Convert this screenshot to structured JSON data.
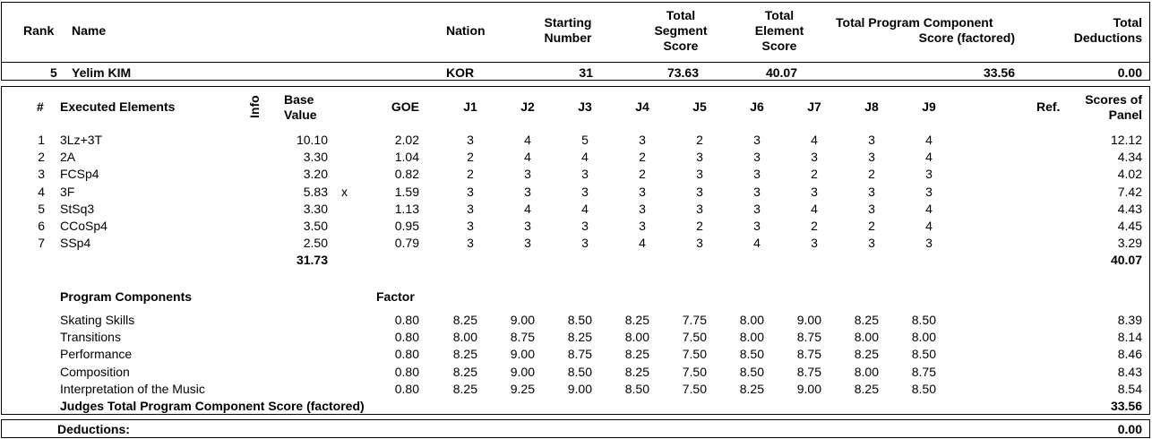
{
  "header": {
    "rank_label": "Rank",
    "name_label": "Name",
    "nation_label": "Nation",
    "starting_label": [
      "Starting",
      "Number"
    ],
    "tss_label": [
      "Total",
      "Segment",
      "Score"
    ],
    "tes_label": [
      "Total",
      "Element",
      "Score"
    ],
    "pcs_label": [
      "Total Program Component",
      "Score (factored)"
    ],
    "ded_label": [
      "Total",
      "Deductions"
    ]
  },
  "skater": {
    "rank": "5",
    "name": "Yelim KIM",
    "nation": "KOR",
    "starting_number": "31",
    "tss": "73.63",
    "tes": "40.07",
    "pcs": "33.56",
    "deductions": "0.00"
  },
  "elements_header": {
    "num": "#",
    "executed": "Executed Elements",
    "info": "Info",
    "base": [
      "Base",
      "Value"
    ],
    "goe": "GOE",
    "judges": [
      "J1",
      "J2",
      "J3",
      "J4",
      "J5",
      "J6",
      "J7",
      "J8",
      "J9"
    ],
    "ref": "Ref.",
    "scores": [
      "Scores of",
      "Panel"
    ]
  },
  "elements": [
    {
      "num": "1",
      "name": "3Lz+3T",
      "info": "",
      "base": "10.10",
      "goe": "2.02",
      "j": [
        "3",
        "4",
        "5",
        "3",
        "2",
        "3",
        "4",
        "3",
        "4"
      ],
      "score": "12.12"
    },
    {
      "num": "2",
      "name": "2A",
      "info": "",
      "base": "3.30",
      "goe": "1.04",
      "j": [
        "2",
        "4",
        "4",
        "2",
        "3",
        "3",
        "3",
        "3",
        "4"
      ],
      "score": "4.34"
    },
    {
      "num": "3",
      "name": "FCSp4",
      "info": "",
      "base": "3.20",
      "goe": "0.82",
      "j": [
        "2",
        "3",
        "3",
        "2",
        "3",
        "3",
        "2",
        "2",
        "3"
      ],
      "score": "4.02"
    },
    {
      "num": "4",
      "name": "3F",
      "info": "x",
      "base": "5.83",
      "goe": "1.59",
      "j": [
        "3",
        "3",
        "3",
        "3",
        "3",
        "3",
        "3",
        "3",
        "3"
      ],
      "score": "7.42"
    },
    {
      "num": "5",
      "name": "StSq3",
      "info": "",
      "base": "3.30",
      "goe": "1.13",
      "j": [
        "3",
        "4",
        "4",
        "3",
        "3",
        "3",
        "4",
        "3",
        "4"
      ],
      "score": "4.43"
    },
    {
      "num": "6",
      "name": "CCoSp4",
      "info": "",
      "base": "3.50",
      "goe": "0.95",
      "j": [
        "3",
        "3",
        "3",
        "3",
        "2",
        "3",
        "2",
        "2",
        "4"
      ],
      "score": "4.45"
    },
    {
      "num": "7",
      "name": "SSp4",
      "info": "",
      "base": "2.50",
      "goe": "0.79",
      "j": [
        "3",
        "3",
        "3",
        "4",
        "3",
        "4",
        "3",
        "3",
        "3"
      ],
      "score": "3.29"
    }
  ],
  "elements_total": {
    "base": "31.73",
    "score": "40.07"
  },
  "components_header": {
    "title": "Program Components",
    "factor": "Factor"
  },
  "components": [
    {
      "name": "Skating Skills",
      "factor": "0.80",
      "j": [
        "8.25",
        "9.00",
        "8.50",
        "8.25",
        "7.75",
        "8.00",
        "9.00",
        "8.25",
        "8.50"
      ],
      "score": "8.39"
    },
    {
      "name": "Transitions",
      "factor": "0.80",
      "j": [
        "8.00",
        "8.75",
        "8.25",
        "8.00",
        "7.50",
        "8.00",
        "8.75",
        "8.00",
        "8.00"
      ],
      "score": "8.14"
    },
    {
      "name": "Performance",
      "factor": "0.80",
      "j": [
        "8.25",
        "9.00",
        "8.75",
        "8.25",
        "7.50",
        "8.50",
        "8.75",
        "8.25",
        "8.50"
      ],
      "score": "8.46"
    },
    {
      "name": "Composition",
      "factor": "0.80",
      "j": [
        "8.25",
        "9.00",
        "8.50",
        "8.25",
        "7.50",
        "8.50",
        "8.75",
        "8.00",
        "8.75"
      ],
      "score": "8.43"
    },
    {
      "name": "Interpretation of the Music",
      "factor": "0.80",
      "j": [
        "8.25",
        "9.25",
        "9.00",
        "8.50",
        "7.50",
        "8.25",
        "9.00",
        "8.25",
        "8.50"
      ],
      "score": "8.54"
    }
  ],
  "components_total": {
    "label": "Judges Total Program Component Score (factored)",
    "score": "33.56"
  },
  "deductions": {
    "label": "Deductions:",
    "value": "0.00"
  }
}
